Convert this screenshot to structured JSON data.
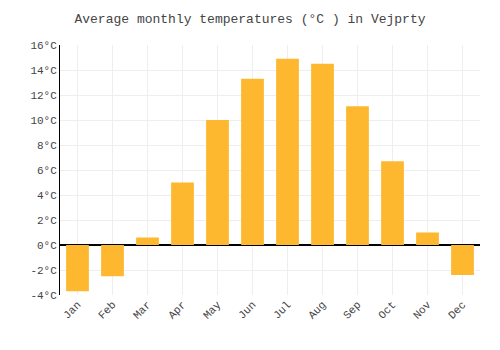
{
  "chart_data": {
    "type": "bar",
    "title": "Average monthly temperatures (°C ) in Vejprty",
    "categories": [
      "Jan",
      "Feb",
      "Mar",
      "Apr",
      "May",
      "Jun",
      "Jul",
      "Aug",
      "Sep",
      "Oct",
      "Nov",
      "Dec"
    ],
    "values": [
      -3.7,
      -2.5,
      0.6,
      5.0,
      10.0,
      13.3,
      14.9,
      14.5,
      11.1,
      6.7,
      1.0,
      -2.4
    ],
    "color": "#FDB830",
    "ylim": [
      -4,
      16
    ],
    "yticks": [
      {
        "value": -4,
        "label": "-4°C"
      },
      {
        "value": -2,
        "label": "-2°C"
      },
      {
        "value": 0,
        "label": "0°C"
      },
      {
        "value": 2,
        "label": "2°C"
      },
      {
        "value": 4,
        "label": "4°C"
      },
      {
        "value": 6,
        "label": "6°C"
      },
      {
        "value": 8,
        "label": "8°C"
      },
      {
        "value": 10,
        "label": "10°C"
      },
      {
        "value": 12,
        "label": "12°C"
      },
      {
        "value": 14,
        "label": "14°C"
      },
      {
        "value": 16,
        "label": "16°C"
      }
    ],
    "grid": true
  }
}
